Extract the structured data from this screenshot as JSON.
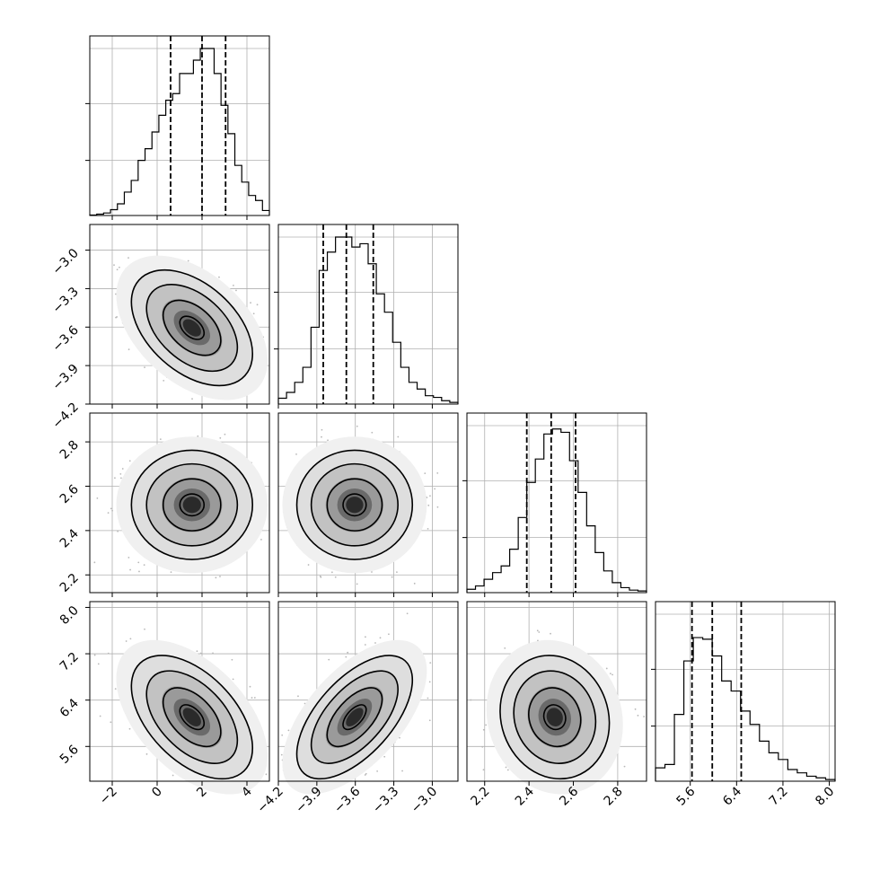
{
  "chart_data": {
    "type": "corner",
    "parameters": [
      {
        "range": [
          -3,
          5
        ],
        "ticks": [
          "−2",
          "0",
          "2",
          "4"
        ],
        "tick_values": [
          -2,
          0,
          2,
          4
        ],
        "quantiles": [
          0.6,
          2.0,
          3.05
        ],
        "hist": [
          0.003,
          0.008,
          0.015,
          0.035,
          0.07,
          0.14,
          0.21,
          0.33,
          0.4,
          0.5,
          0.6,
          0.69,
          0.73,
          0.85,
          0.85,
          0.93,
          1.0,
          1.0,
          0.85,
          0.66,
          0.49,
          0.3,
          0.2,
          0.12,
          0.09,
          0.03
        ]
      },
      {
        "range": [
          -4.2,
          -2.8
        ],
        "ticks": [
          "−4.2",
          "−3.9",
          "−3.6",
          "−3.3",
          "−3.0"
        ],
        "tick_values": [
          -4.2,
          -3.9,
          -3.6,
          -3.3,
          -3.0
        ],
        "quantiles": [
          -3.85,
          -3.67,
          -3.46
        ],
        "hist": [
          0.035,
          0.07,
          0.13,
          0.22,
          0.46,
          0.8,
          0.91,
          1.0,
          1.0,
          0.94,
          0.96,
          0.84,
          0.66,
          0.55,
          0.37,
          0.22,
          0.13,
          0.09,
          0.05,
          0.04,
          0.02,
          0.01
        ]
      },
      {
        "range": [
          2.12,
          2.93
        ],
        "ticks": [
          "2.2",
          "2.4",
          "2.6",
          "2.8"
        ],
        "tick_values": [
          2.2,
          2.4,
          2.6,
          2.8
        ],
        "quantiles": [
          2.39,
          2.5,
          2.61
        ],
        "hist": [
          0.02,
          0.04,
          0.08,
          0.12,
          0.16,
          0.26,
          0.45,
          0.66,
          0.8,
          0.95,
          0.98,
          0.96,
          0.79,
          0.6,
          0.4,
          0.24,
          0.13,
          0.06,
          0.03,
          0.015,
          0.01
        ]
      },
      {
        "range": [
          5.0,
          8.1
        ],
        "ticks": [
          "5.6",
          "6.4",
          "7.2",
          "8.0"
        ],
        "tick_values": [
          5.6,
          6.4,
          7.2,
          8.0
        ],
        "quantiles": [
          5.63,
          5.98,
          6.48
        ],
        "hist": [
          0.08,
          0.1,
          0.4,
          0.72,
          0.86,
          0.85,
          0.75,
          0.6,
          0.54,
          0.42,
          0.34,
          0.24,
          0.17,
          0.13,
          0.07,
          0.05,
          0.03,
          0.02,
          0.01
        ]
      }
    ],
    "correlations": [
      [
        1,
        -0.45,
        0.0,
        -0.5
      ],
      [
        -0.45,
        1,
        0.0,
        0.6
      ],
      [
        0.0,
        0.0,
        1,
        -0.1
      ],
      [
        -0.5,
        0.6,
        -0.1,
        1
      ]
    ],
    "grid": true
  }
}
